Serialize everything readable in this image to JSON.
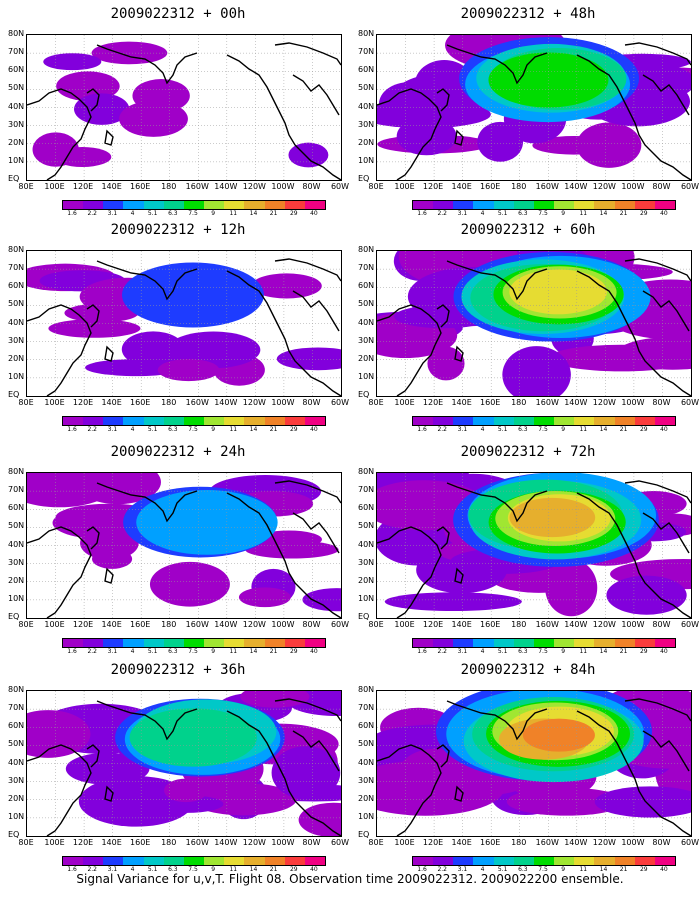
{
  "panels": [
    {
      "title": "2009022312 + 00h",
      "intensity": 0.05
    },
    {
      "title": "2009022312 + 48h",
      "intensity": 0.55
    },
    {
      "title": "2009022312 + 12h",
      "intensity": 0.18
    },
    {
      "title": "2009022312 + 60h",
      "intensity": 0.7
    },
    {
      "title": "2009022312 + 24h",
      "intensity": 0.3
    },
    {
      "title": "2009022312 + 72h",
      "intensity": 0.8
    },
    {
      "title": "2009022312 + 36h",
      "intensity": 0.45
    },
    {
      "title": "2009022312 + 84h",
      "intensity": 0.9
    }
  ],
  "lat_labels": [
    "80N",
    "70N",
    "60N",
    "50N",
    "40N",
    "30N",
    "20N",
    "10N",
    "EQ"
  ],
  "lon_labels": [
    "80E",
    "100E",
    "120E",
    "140E",
    "160E",
    "180",
    "160W",
    "140W",
    "120W",
    "100W",
    "80W",
    "60W"
  ],
  "colorbar": {
    "labels": [
      "1.6",
      "2.2",
      "3.1",
      "4",
      "5.1",
      "6.3",
      "7.5",
      "9",
      "11",
      "14",
      "21",
      "29",
      "40"
    ],
    "colors": [
      "#a000c8",
      "#8200dc",
      "#1e3cff",
      "#00a0ff",
      "#00c8c8",
      "#00d28c",
      "#00dc00",
      "#a0e632",
      "#e6dc32",
      "#e6af2d",
      "#f08228",
      "#fa3c3c",
      "#f00082"
    ]
  },
  "caption": "Signal Variance for u,v,T. Flight 08. Observation time 2009022312. 2009022200 ensemble."
}
